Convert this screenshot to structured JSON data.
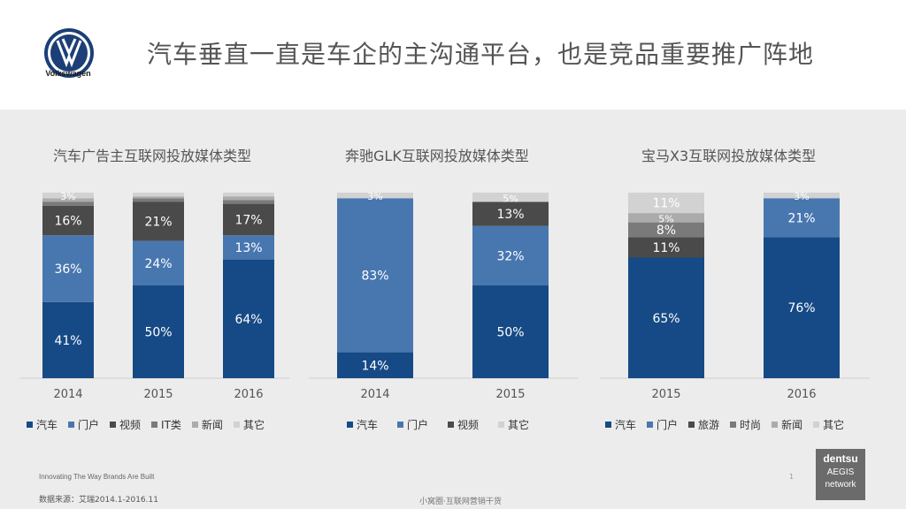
{
  "header": {
    "title": "汽车垂直一直是车企的主沟通平台，也是竞品重要推广阵地",
    "brand": "Volkswagen"
  },
  "colors": {
    "汽车": "#164a86",
    "门户": "#4877b0",
    "视频": "#4a4a4a",
    "IT类": "#7a7a7a",
    "旅游": "#4a4a4a",
    "时尚": "#7a7a7a",
    "新闻": "#ababab",
    "其它": "#d2d2d2"
  },
  "chart_data": [
    {
      "type": "bar",
      "stacked": true,
      "title": "汽车广告主互联网投放媒体类型",
      "categories": [
        "2014",
        "2015",
        "2016"
      ],
      "series": [
        {
          "name": "汽车",
          "values": [
            41,
            50,
            64
          ]
        },
        {
          "name": "门户",
          "values": [
            36,
            24,
            13
          ]
        },
        {
          "name": "视频",
          "values": [
            16,
            21,
            17
          ]
        },
        {
          "name": "IT类",
          "values": [
            2,
            2,
            2
          ]
        },
        {
          "name": "新闻",
          "values": [
            2,
            1,
            2
          ]
        },
        {
          "name": "其它",
          "values": [
            3,
            2,
            2
          ]
        }
      ],
      "legend": [
        "汽车",
        "门户",
        "视频",
        "IT类",
        "新闻",
        "其它"
      ],
      "ylim": [
        0,
        100
      ]
    },
    {
      "type": "bar",
      "stacked": true,
      "title": "奔驰GLK互联网投放媒体类型",
      "categories": [
        "2014",
        "2015"
      ],
      "series": [
        {
          "name": "汽车",
          "values": [
            14,
            50
          ]
        },
        {
          "name": "门户",
          "values": [
            83,
            32
          ]
        },
        {
          "name": "视频",
          "values": [
            0,
            13
          ]
        },
        {
          "name": "其它",
          "values": [
            3,
            5
          ]
        }
      ],
      "legend": [
        "汽车",
        "门户",
        "视频",
        "其它"
      ],
      "ylim": [
        0,
        100
      ]
    },
    {
      "type": "bar",
      "stacked": true,
      "title": "宝马X3互联网投放媒体类型",
      "categories": [
        "2015",
        "2016"
      ],
      "series": [
        {
          "name": "汽车",
          "values": [
            65,
            76
          ]
        },
        {
          "name": "门户",
          "values": [
            0,
            21
          ]
        },
        {
          "name": "旅游",
          "values": [
            11,
            0
          ]
        },
        {
          "name": "时尚",
          "values": [
            8,
            0
          ]
        },
        {
          "name": "新闻",
          "values": [
            5,
            0
          ]
        },
        {
          "name": "其它",
          "values": [
            11,
            3
          ]
        }
      ],
      "legend": [
        "汽车",
        "门户",
        "旅游",
        "时尚",
        "新闻",
        "其它"
      ],
      "ylim": [
        0,
        100
      ]
    }
  ],
  "footer": {
    "slogan": "Innovating The Way Brands Are Built",
    "source": "数据来源：艾瑞2014.1-2016.11",
    "center": "小窝圈·互联网营销干货",
    "page": "1",
    "agency_line1": "dentsu",
    "agency_line2": "AEGIS",
    "agency_line3": "network"
  }
}
